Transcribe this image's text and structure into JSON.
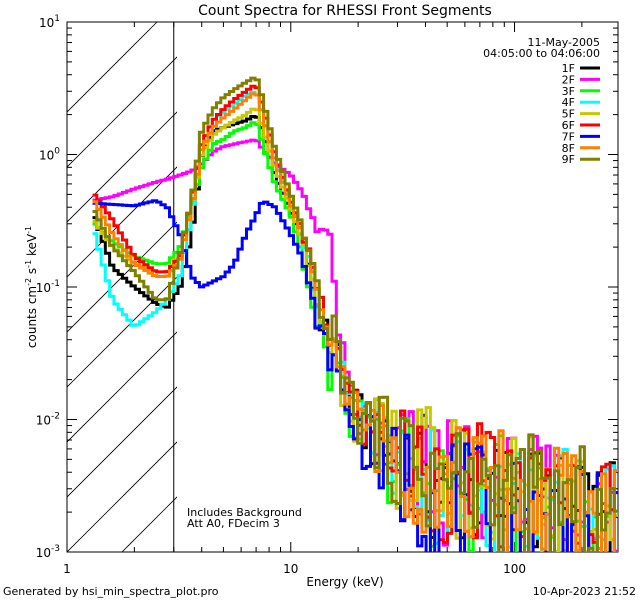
{
  "chart_data": {
    "type": "line",
    "title": "Count Spectra for RHESSI Front Segments",
    "xlabel": "Energy (keV)",
    "ylabel_parts": {
      "base": "counts cm",
      "exp1": "-2",
      "mid": " s",
      "exp2": "-1",
      "end": " keV",
      "exp3": "-1"
    },
    "xscale": "log",
    "yscale": "log",
    "xlim": [
      1,
      290
    ],
    "ylim": [
      0.001,
      10
    ],
    "x_ticks": [
      {
        "value": 1,
        "label": "1"
      },
      {
        "value": 10,
        "label": "10"
      },
      {
        "value": 100,
        "label": "100"
      }
    ],
    "y_ticks": [
      {
        "value": 0.001,
        "base": "10",
        "exp": "-3"
      },
      {
        "value": 0.01,
        "base": "10",
        "exp": "-2"
      },
      {
        "value": 0.1,
        "base": "10",
        "exp": "-1"
      },
      {
        "value": 1,
        "base": "10",
        "exp": "0"
      },
      {
        "value": 10,
        "base": "10",
        "exp": "1"
      }
    ],
    "shaded_region": {
      "x": [
        1,
        3
      ],
      "pattern": "diagonal hatch"
    },
    "annotations": {
      "date": "11-May-2005",
      "time_range": "04:05:00 to 04:06:00",
      "background_note": "Includes Background",
      "attenuator_note": "Att A0, FDecim 3"
    },
    "series": [
      {
        "name": "1F",
        "color": "#000000",
        "x": [
          1.3,
          1.6,
          2.0,
          2.5,
          2.8,
          3.2,
          3.6,
          4.0,
          4.5,
          5.0,
          5.6,
          6.3,
          7.0,
          7.5,
          8.5,
          10,
          11,
          12,
          13,
          14,
          15,
          16,
          17,
          18,
          20,
          25,
          30,
          40,
          50,
          60,
          70,
          80,
          100,
          150,
          200,
          250,
          290
        ],
        "values": [
          0.37,
          0.14,
          0.1,
          0.075,
          0.07,
          0.1,
          0.25,
          1.0,
          1.5,
          1.6,
          1.7,
          1.8,
          2.0,
          1.5,
          0.7,
          0.37,
          0.25,
          0.15,
          0.075,
          0.05,
          0.04,
          0.045,
          0.02,
          0.015,
          0.01,
          0.007,
          0.005,
          0.0035,
          0.003,
          0.003,
          0.0028,
          0.0027,
          0.0025,
          0.002,
          0.0015,
          0.0015,
          0.0015
        ]
      },
      {
        "name": "2F",
        "color": "#ff00ff",
        "x": [
          1.3,
          1.6,
          2.0,
          2.5,
          2.8,
          3.2,
          3.6,
          4.0,
          4.5,
          5.0,
          5.6,
          6.3,
          7.0,
          7.5,
          8.5,
          10,
          11,
          12,
          13,
          14,
          15,
          16,
          17,
          18,
          20,
          25,
          30,
          40,
          50,
          60,
          70,
          80,
          100,
          150,
          200,
          250,
          290
        ],
        "values": [
          0.45,
          0.48,
          0.55,
          0.62,
          0.65,
          0.7,
          0.75,
          0.85,
          1.05,
          1.15,
          1.2,
          1.25,
          1.3,
          1.1,
          0.85,
          0.7,
          0.55,
          0.4,
          0.3,
          0.28,
          0.2,
          0.07,
          0.03,
          0.015,
          0.01,
          0.007,
          0.005,
          0.0038,
          0.0033,
          0.003,
          0.003,
          0.0028,
          0.0026,
          0.0022,
          0.002,
          0.0016,
          0.0015
        ]
      },
      {
        "name": "3F",
        "color": "#00ff00",
        "x": [
          1.3,
          1.6,
          2.0,
          2.5,
          2.8,
          3.2,
          3.6,
          4.0,
          4.5,
          5.0,
          5.6,
          6.3,
          7.0,
          7.5,
          8.5,
          10,
          11,
          12,
          13,
          14,
          15,
          16,
          17,
          18,
          20,
          25,
          30,
          40,
          50,
          60,
          70,
          80,
          100,
          150,
          200,
          250,
          290
        ],
        "values": [
          0.31,
          0.22,
          0.17,
          0.15,
          0.15,
          0.2,
          0.4,
          0.8,
          1.2,
          1.3,
          1.5,
          1.6,
          1.8,
          1.2,
          0.6,
          0.35,
          0.2,
          0.1,
          0.05,
          0.04,
          0.02,
          0.035,
          0.015,
          0.012,
          0.009,
          0.006,
          0.0045,
          0.0035,
          0.003,
          0.0028,
          0.0026,
          0.0025,
          0.0022,
          0.0018,
          0.0016,
          0.0014,
          0.0013
        ]
      },
      {
        "name": "4F",
        "color": "#00ffff",
        "x": [
          1.3,
          1.6,
          2.0,
          2.5,
          2.8,
          3.2,
          3.6,
          4.0,
          4.5,
          5.0,
          5.6,
          6.3,
          7.0,
          7.5,
          8.5,
          10,
          11,
          12,
          13,
          14,
          15,
          16,
          17,
          18,
          20,
          25,
          30,
          40,
          50,
          60,
          70,
          80,
          100,
          150,
          200,
          250,
          290
        ],
        "values": [
          0.29,
          0.08,
          0.05,
          0.065,
          0.08,
          0.12,
          0.35,
          1.2,
          1.8,
          2.1,
          2.4,
          2.8,
          3.0,
          2.0,
          0.9,
          0.45,
          0.28,
          0.16,
          0.08,
          0.05,
          0.03,
          0.04,
          0.02,
          0.016,
          0.01,
          0.0065,
          0.005,
          0.0038,
          0.0033,
          0.003,
          0.0029,
          0.0028,
          0.0027,
          0.0022,
          0.0019,
          0.0016,
          0.0016
        ]
      },
      {
        "name": "5F",
        "color": "#c8c800",
        "x": [
          1.3,
          1.6,
          2.0,
          2.5,
          2.8,
          3.2,
          3.6,
          4.0,
          4.5,
          5.0,
          5.6,
          6.3,
          7.0,
          7.5,
          8.5,
          10,
          11,
          12,
          13,
          14,
          15,
          16,
          17,
          18,
          20,
          25,
          30,
          40,
          50,
          60,
          70,
          80,
          100,
          150,
          200,
          250,
          290
        ],
        "values": [
          0.33,
          0.2,
          0.15,
          0.13,
          0.13,
          0.18,
          0.4,
          1.0,
          1.4,
          1.6,
          1.8,
          2.0,
          2.3,
          1.6,
          0.8,
          0.4,
          0.25,
          0.15,
          0.08,
          0.05,
          0.035,
          0.04,
          0.018,
          0.014,
          0.01,
          0.007,
          0.0055,
          0.0042,
          0.0036,
          0.0034,
          0.0033,
          0.003,
          0.003,
          0.0026,
          0.0024,
          0.002,
          0.002
        ]
      },
      {
        "name": "6F",
        "color": "#ff0000",
        "x": [
          1.3,
          1.6,
          2.0,
          2.5,
          2.8,
          3.2,
          3.6,
          4.0,
          4.5,
          5.0,
          5.6,
          6.3,
          7.0,
          7.5,
          8.5,
          10,
          11,
          12,
          13,
          14,
          15,
          16,
          17,
          18,
          20,
          25,
          30,
          40,
          50,
          60,
          70,
          80,
          100,
          150,
          200,
          250,
          290
        ],
        "values": [
          0.52,
          0.32,
          0.17,
          0.13,
          0.13,
          0.17,
          0.45,
          1.2,
          1.8,
          2.2,
          2.6,
          3.0,
          3.4,
          2.3,
          1.0,
          0.45,
          0.3,
          0.18,
          0.1,
          0.06,
          0.04,
          0.05,
          0.022,
          0.016,
          0.011,
          0.0075,
          0.0055,
          0.004,
          0.0035,
          0.0032,
          0.003,
          0.0028,
          0.0025,
          0.0022,
          0.002,
          0.0018,
          0.0018
        ]
      },
      {
        "name": "7F",
        "color": "#0000ff",
        "x": [
          1.3,
          1.6,
          2.0,
          2.5,
          2.8,
          3.2,
          3.6,
          4.0,
          4.5,
          5.0,
          5.6,
          6.3,
          7.0,
          7.5,
          8.5,
          10,
          11,
          12,
          13,
          14,
          15,
          16,
          17,
          18,
          20,
          25,
          30,
          40,
          50,
          60,
          70,
          80,
          100,
          150,
          200,
          250,
          290
        ],
        "values": [
          0.43,
          0.42,
          0.41,
          0.45,
          0.4,
          0.25,
          0.12,
          0.1,
          0.11,
          0.12,
          0.15,
          0.25,
          0.35,
          0.45,
          0.4,
          0.25,
          0.18,
          0.1,
          0.06,
          0.04,
          0.03,
          0.025,
          0.015,
          0.012,
          0.008,
          0.005,
          0.004,
          0.003,
          0.0025,
          0.0022,
          0.002,
          0.002,
          0.0018,
          0.0015,
          0.0014,
          0.0013,
          0.0012
        ]
      },
      {
        "name": "8F",
        "color": "#ff8000",
        "x": [
          1.3,
          1.6,
          2.0,
          2.5,
          2.8,
          3.2,
          3.6,
          4.0,
          4.5,
          5.0,
          5.6,
          6.3,
          7.0,
          7.5,
          8.5,
          10,
          11,
          12,
          13,
          14,
          15,
          16,
          17,
          18,
          20,
          25,
          30,
          40,
          50,
          60,
          70,
          80,
          100,
          150,
          200,
          250,
          290
        ],
        "values": [
          0.47,
          0.25,
          0.15,
          0.12,
          0.12,
          0.16,
          0.4,
          1.1,
          1.6,
          1.9,
          2.2,
          2.6,
          3.0,
          2.0,
          0.9,
          0.42,
          0.28,
          0.17,
          0.09,
          0.06,
          0.035,
          0.045,
          0.02,
          0.015,
          0.01,
          0.007,
          0.0055,
          0.004,
          0.0035,
          0.0032,
          0.003,
          0.0029,
          0.0027,
          0.0023,
          0.002,
          0.0018,
          0.0018
        ]
      },
      {
        "name": "9F",
        "color": "#808000",
        "x": [
          1.3,
          1.6,
          2.0,
          2.5,
          2.8,
          3.2,
          3.6,
          4.0,
          4.5,
          5.0,
          5.6,
          6.3,
          7.0,
          7.5,
          8.5,
          10,
          11,
          12,
          13,
          14,
          15,
          16,
          17,
          18,
          20,
          25,
          30,
          40,
          50,
          60,
          70,
          80,
          100,
          150,
          200,
          250,
          290
        ],
        "values": [
          0.4,
          0.2,
          0.13,
          0.08,
          0.08,
          0.18,
          0.45,
          1.5,
          2.2,
          2.7,
          3.1,
          3.5,
          3.9,
          2.6,
          1.1,
          0.5,
          0.32,
          0.2,
          0.1,
          0.06,
          0.04,
          0.05,
          0.022,
          0.016,
          0.011,
          0.0075,
          0.0055,
          0.004,
          0.0035,
          0.0032,
          0.003,
          0.0028,
          0.0026,
          0.0022,
          0.002,
          0.0018,
          0.0018
        ]
      }
    ]
  },
  "footer": {
    "generator": "Generated by hsi_min_spectra_plot.pro",
    "timestamp": "10-Apr-2023 21:52"
  }
}
